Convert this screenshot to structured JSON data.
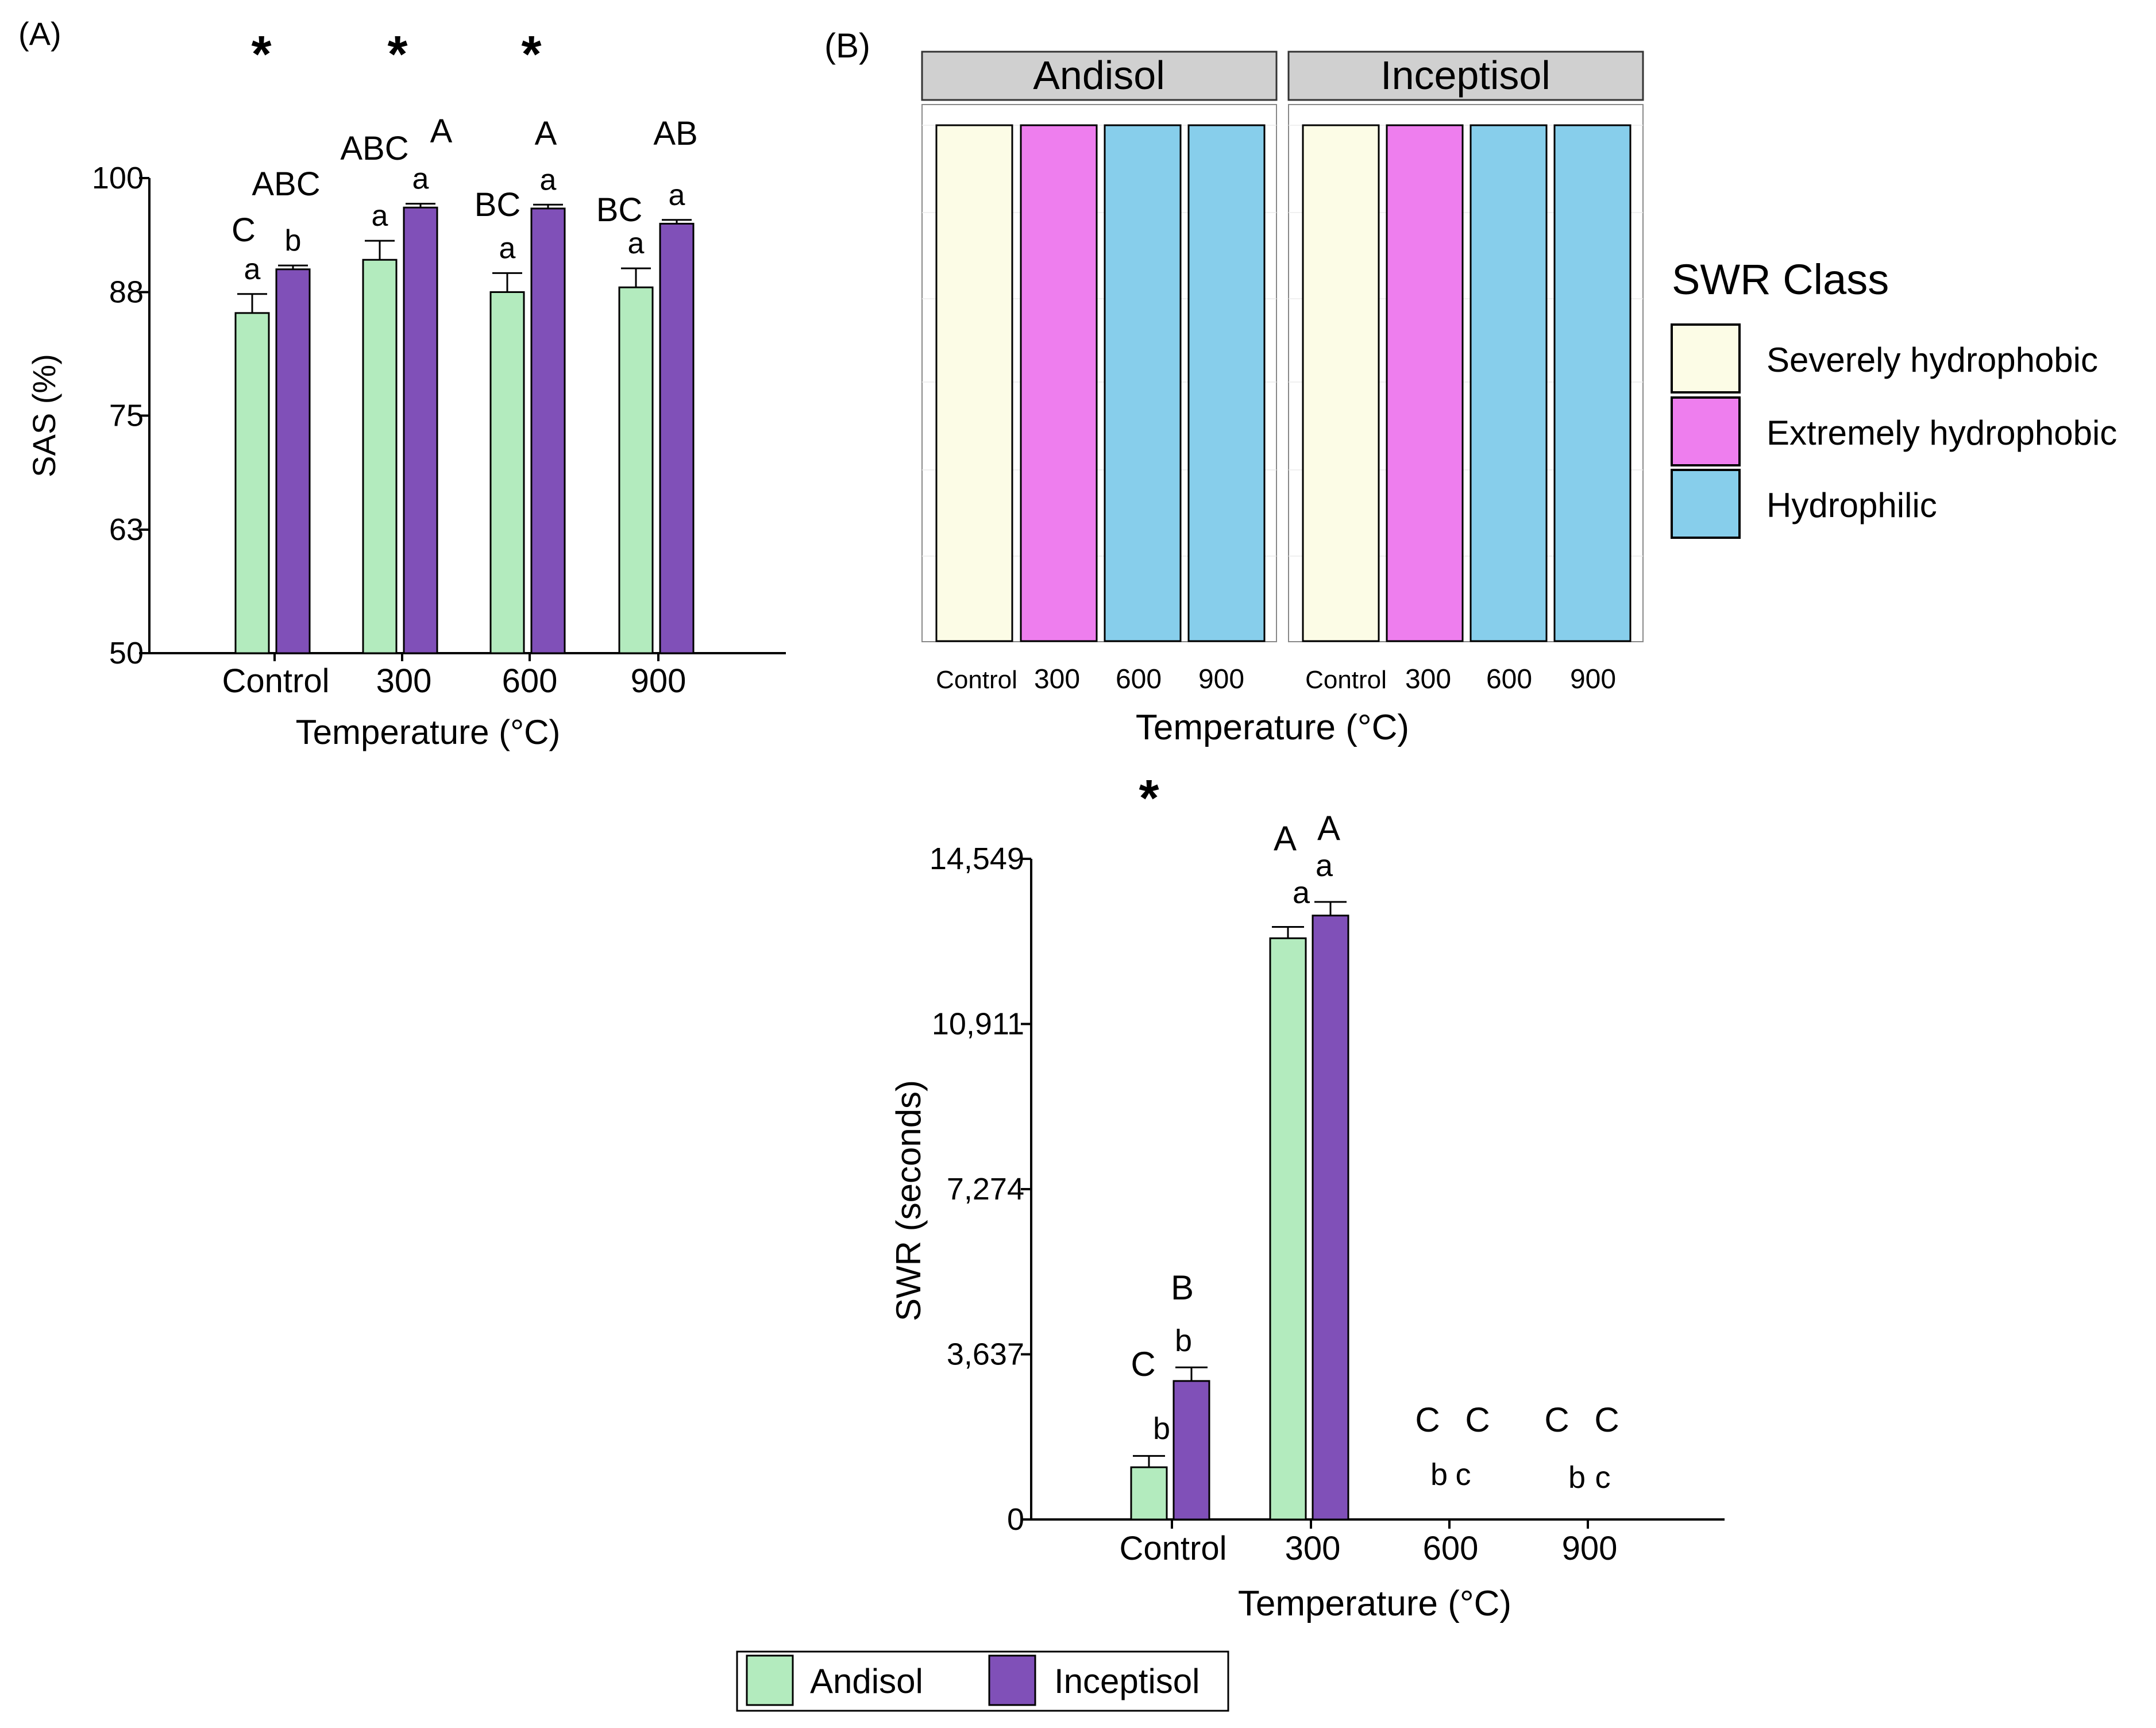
{
  "colors": {
    "andisol": "#b3ebbe",
    "inceptisol": "#8050b8",
    "severe": "#fcfce6",
    "extreme": "#ee7eee",
    "hydrophilic": "#87ceeb",
    "strip": "#d0d0d0"
  },
  "chart_data": [
    {
      "panel": "A",
      "type": "bar",
      "panel_label": "(A)",
      "categories": [
        "Control",
        "300",
        "600",
        "900"
      ],
      "series": [
        {
          "name": "Andisol",
          "values": [
            85.8,
            91.4,
            88.0,
            88.5
          ],
          "errors": [
            2.0,
            2.0,
            2.0,
            2.0
          ]
        },
        {
          "name": "Inceptisol",
          "values": [
            90.4,
            96.9,
            96.8,
            95.2
          ],
          "errors": [
            0.4,
            0.4,
            0.4,
            0.4
          ]
        }
      ],
      "ylim": [
        50,
        100
      ],
      "yticks": [
        50,
        63,
        75,
        88,
        100
      ],
      "xlabel": "Temperature (°C)",
      "ylabel": "SAS  (%)",
      "stars": [
        "*",
        "*",
        "*",
        ""
      ],
      "upper_letters": [
        {
          "andisol": "C",
          "inceptisol": "ABC"
        },
        {
          "andisol": "ABC",
          "inceptisol": "A"
        },
        {
          "andisol": "BC",
          "inceptisol": "A"
        },
        {
          "andisol": "BC",
          "inceptisol": "AB"
        }
      ],
      "lower_letters": [
        {
          "andisol": "a",
          "inceptisol": "b"
        },
        {
          "andisol": "a",
          "inceptisol": "a"
        },
        {
          "andisol": "a",
          "inceptisol": "a"
        },
        {
          "andisol": "a",
          "inceptisol": "a"
        }
      ]
    },
    {
      "panel": "B",
      "type": "table",
      "panel_label": "(B)",
      "facets": [
        "Andisol",
        "Inceptisol"
      ],
      "categories": [
        "Control",
        "300",
        "600",
        "900"
      ],
      "classes": [
        [
          "Severely hydrophobic",
          "Extremely hydrophobic",
          "Hydrophilic",
          "Hydrophilic"
        ],
        [
          "Severely hydrophobic",
          "Extremely hydrophobic",
          "Hydrophilic",
          "Hydrophilic"
        ]
      ],
      "xlabel": "Temperature (°C)",
      "legend_title": "SWR Class",
      "legend": [
        "Severely hydrophobic",
        "Extremely hydrophobic",
        "Hydrophilic"
      ]
    },
    {
      "panel": "C",
      "type": "bar",
      "categories": [
        "Control",
        "300",
        "600",
        "900"
      ],
      "series": [
        {
          "name": "Andisol",
          "values": [
            1150,
            12800,
            0,
            0
          ],
          "errors": [
            250,
            250,
            0,
            0
          ]
        },
        {
          "name": "Inceptisol",
          "values": [
            3050,
            13300,
            0,
            0
          ],
          "errors": [
            300,
            300,
            0,
            0
          ]
        }
      ],
      "ylim": [
        0,
        14549
      ],
      "yticks": [
        0,
        3637,
        7274,
        10911,
        14549
      ],
      "ytick_labels": [
        "0",
        "3,637",
        "7,274",
        "10,911",
        "14,549"
      ],
      "xlabel": "Temperature (°C)",
      "ylabel": "SWR (seconds)",
      "stars": [
        "*",
        "",
        "",
        ""
      ],
      "upper_letters": [
        {
          "andisol": "C",
          "inceptisol": "B"
        },
        {
          "andisol": "A",
          "inceptisol": "A"
        },
        {
          "andisol": "C",
          "inceptisol": "C"
        },
        {
          "andisol": "C",
          "inceptisol": "C"
        }
      ],
      "lower_letters": [
        {
          "andisol": "b",
          "inceptisol": "b"
        },
        {
          "andisol": "a",
          "inceptisol": "a"
        },
        {
          "andisol": "b",
          "inceptisol": "c"
        },
        {
          "andisol": "b",
          "inceptisol": "c"
        }
      ]
    }
  ],
  "legend": {
    "items": [
      "Andisol",
      "Inceptisol"
    ]
  }
}
